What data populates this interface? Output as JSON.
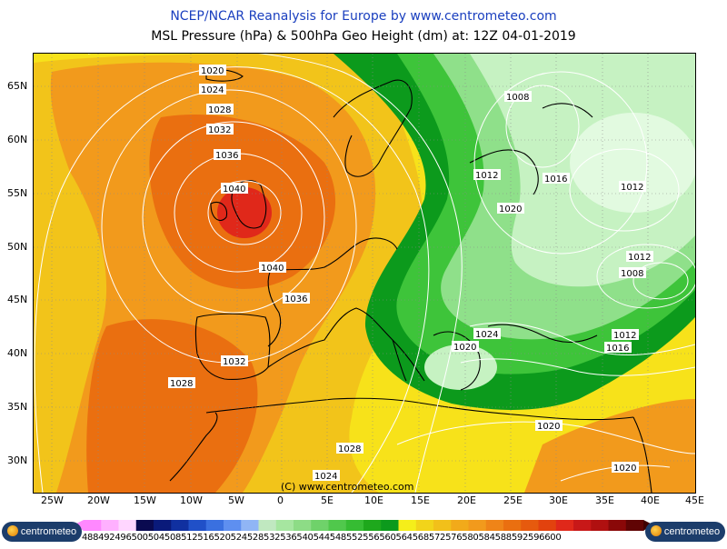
{
  "header": {
    "title": "NCEP/NCAR Reanalysis for Europe by www.centrometeo.com",
    "subtitle": "MSL Pressure (hPa) & 500hPa Geo Height (dm) at: 12Z 04-01-2019"
  },
  "map": {
    "copyright": "(C) www.centrometeo.com",
    "lat_labels": [
      "65N",
      "60N",
      "55N",
      "50N",
      "45N",
      "40N",
      "35N",
      "30N"
    ],
    "lon_labels": [
      "25W",
      "20W",
      "15W",
      "10W",
      "5W",
      "0",
      "5E",
      "10E",
      "15E",
      "20E",
      "25E",
      "30E",
      "35E",
      "40E",
      "45E"
    ],
    "isobar_labels": [
      {
        "text": "1020"
      },
      {
        "text": "1024"
      },
      {
        "text": "1028"
      },
      {
        "text": "1032"
      },
      {
        "text": "1036"
      },
      {
        "text": "1040"
      },
      {
        "text": "1040"
      },
      {
        "text": "1036"
      },
      {
        "text": "1032"
      },
      {
        "text": "1028"
      },
      {
        "text": "1028"
      },
      {
        "text": "1024"
      },
      {
        "text": "1008"
      },
      {
        "text": "1012"
      },
      {
        "text": "1016"
      },
      {
        "text": "1012"
      },
      {
        "text": "1020"
      },
      {
        "text": "1012"
      },
      {
        "text": "1008"
      },
      {
        "text": "1024"
      },
      {
        "text": "1020"
      },
      {
        "text": "1012"
      },
      {
        "text": "1016"
      },
      {
        "text": "1020"
      },
      {
        "text": "1020"
      }
    ],
    "colors": {
      "orange": "#f29a1c",
      "deep_orange": "#ea6f10",
      "red": "#e0281a",
      "yellow": "#f7e21a",
      "yellow_orange": "#f2c41a",
      "green_dark": "#0c9a1c",
      "green": "#3ec43a",
      "green_light": "#8fe08a",
      "green_pale": "#c6f2c2",
      "green_palest": "#e2fae0"
    }
  },
  "colorbar": {
    "tick_text": "488492496500504508512516520524528532536540544548552556560564568572576580584588592596600",
    "colors": [
      "#ff88ff",
      "#ffb0ff",
      "#ffd6ff",
      "#0a0a50",
      "#0a1a7a",
      "#1030a0",
      "#2050c8",
      "#3a70e0",
      "#5e8ff0",
      "#90b5f5",
      "#c0e8c0",
      "#a6e6a0",
      "#8ddc86",
      "#6fd26a",
      "#50c84c",
      "#36bc33",
      "#1ea81c",
      "#0c9a1c",
      "#f5ee1a",
      "#f2d41a",
      "#f2c01a",
      "#f2aa1a",
      "#f29a1c",
      "#ef8418",
      "#ea6f10",
      "#e65a0e",
      "#e2420e",
      "#e0281a",
      "#c81818",
      "#b01010",
      "#8a0808",
      "#600404"
    ],
    "left_logo": "centrometeo",
    "right_logo": "centrometeo"
  }
}
